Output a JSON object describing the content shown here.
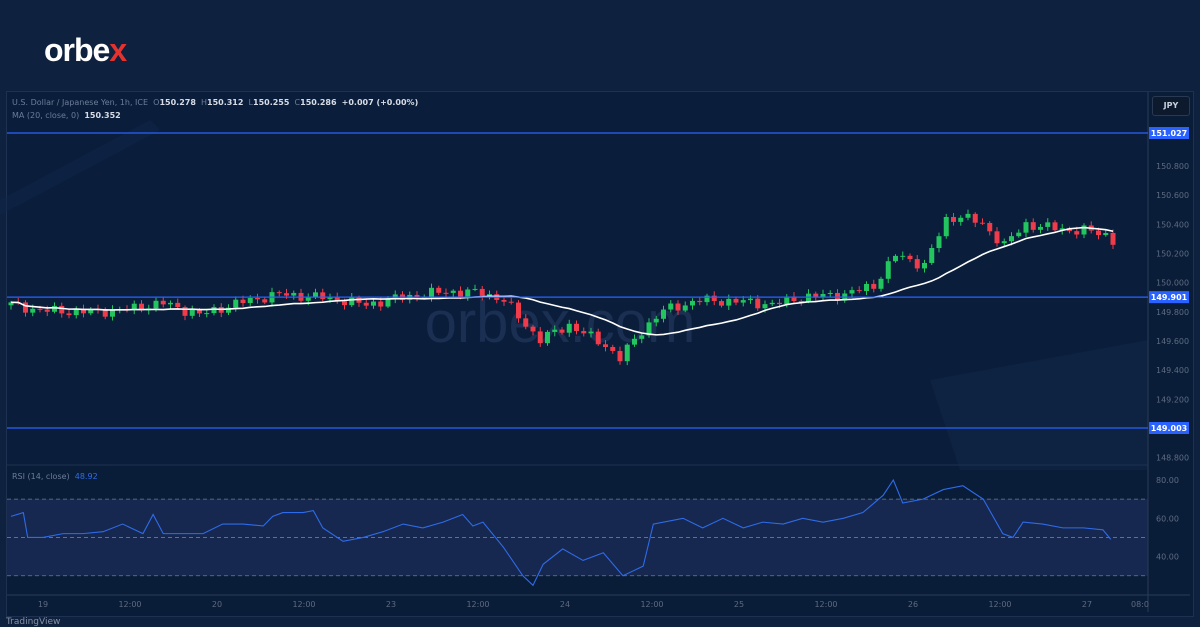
{
  "brand": {
    "logo_text": "orbex",
    "watermark": "orbex.com"
  },
  "header": {
    "symbol": "U.S. Dollar / Japanese Yen, 1h, ICE",
    "open_label": "O",
    "open": "150.278",
    "high_label": "H",
    "high": "150.312",
    "low_label": "L",
    "low": "150.255",
    "close_label": "C",
    "close": "150.286",
    "change": "+0.007 (+0.00%)",
    "ma_label": "MA (20, close, 0)",
    "ma_value": "150.352",
    "rsi_label": "RSI (14, close)",
    "rsi_value": "48.92",
    "currency_button": "JPY"
  },
  "footer": {
    "text": "TradingView"
  },
  "colors": {
    "up": "#26a69a",
    "up_bright": "#22c55e",
    "down": "#ef3b4a",
    "level": "#2962ff",
    "rsi": "#2f6be8",
    "ma": "#ffffff"
  },
  "chart_data": [
    {
      "type": "candlestick",
      "title": "U.S. Dollar / Japanese Yen, 1h",
      "ylim": [
        148.75,
        151.05
      ],
      "yticks": [
        "150.800",
        "150.600",
        "150.400",
        "150.200",
        "150.000",
        "149.800",
        "149.600",
        "149.400",
        "149.200",
        "148.800"
      ],
      "xticks": [
        "19",
        "12:00",
        "20",
        "12:00",
        "23",
        "12:00",
        "24",
        "12:00",
        "25",
        "12:00",
        "26",
        "12:00",
        "27",
        "08:0"
      ],
      "levels": [
        "151.027",
        "149.901",
        "149.003"
      ],
      "close_anchors_hour_price": [
        [
          0,
          149.85
        ],
        [
          4,
          149.81
        ],
        [
          10,
          149.8
        ],
        [
          15,
          149.81
        ],
        [
          21,
          149.86
        ],
        [
          26,
          149.78
        ],
        [
          32,
          149.87
        ],
        [
          37,
          149.92
        ],
        [
          43,
          149.9
        ],
        [
          49,
          149.85
        ],
        [
          54,
          149.9
        ],
        [
          60,
          149.94
        ],
        [
          65,
          149.93
        ],
        [
          68,
          149.88
        ],
        [
          71,
          149.71
        ],
        [
          73,
          149.61
        ],
        [
          77,
          149.71
        ],
        [
          82,
          149.57
        ],
        [
          84,
          149.48
        ],
        [
          87,
          149.67
        ],
        [
          90,
          149.81
        ],
        [
          95,
          149.88
        ],
        [
          101,
          149.87
        ],
        [
          105,
          149.85
        ],
        [
          109,
          149.9
        ],
        [
          115,
          149.92
        ],
        [
          119,
          149.98
        ],
        [
          122,
          150.19
        ],
        [
          126,
          150.12
        ],
        [
          129,
          150.43
        ],
        [
          131,
          150.46
        ],
        [
          134,
          150.4
        ],
        [
          137,
          150.26
        ],
        [
          140,
          150.4
        ],
        [
          143,
          150.38
        ],
        [
          146,
          150.36
        ],
        [
          148,
          150.36
        ],
        [
          151,
          150.33
        ],
        [
          152,
          150.29
        ]
      ],
      "ma_period": 20
    },
    {
      "type": "line",
      "title": "RSI (14, close)",
      "ylim": [
        20,
        90
      ],
      "yticks": [
        "80.00",
        "60.00",
        "40.00"
      ],
      "bands": [
        70,
        50,
        30
      ],
      "points_hour_value": [
        [
          0,
          61
        ],
        [
          1.7,
          63
        ],
        [
          2.3,
          50
        ],
        [
          4.4,
          50
        ],
        [
          7.2,
          52
        ],
        [
          9.9,
          52
        ],
        [
          12.7,
          53
        ],
        [
          15.4,
          57
        ],
        [
          18.2,
          52
        ],
        [
          19.6,
          62
        ],
        [
          21,
          52
        ],
        [
          22.3,
          52
        ],
        [
          23.7,
          52
        ],
        [
          26.5,
          52
        ],
        [
          29.2,
          57
        ],
        [
          32,
          57
        ],
        [
          34.8,
          56
        ],
        [
          36.1,
          61
        ],
        [
          37.5,
          63
        ],
        [
          40.3,
          63
        ],
        [
          41.7,
          64
        ],
        [
          43,
          55
        ],
        [
          45.8,
          48
        ],
        [
          48.6,
          50
        ],
        [
          51.3,
          53
        ],
        [
          54.1,
          57
        ],
        [
          56.8,
          55
        ],
        [
          59.6,
          58
        ],
        [
          62.3,
          62
        ],
        [
          63.7,
          56
        ],
        [
          65.1,
          58
        ],
        [
          67.9,
          45
        ],
        [
          70.6,
          30
        ],
        [
          72,
          25
        ],
        [
          73.4,
          36
        ],
        [
          76.1,
          44
        ],
        [
          78.9,
          38
        ],
        [
          81.7,
          42
        ],
        [
          84.4,
          30
        ],
        [
          87.2,
          35
        ],
        [
          88.6,
          57
        ],
        [
          92.7,
          60
        ],
        [
          95.4,
          55
        ],
        [
          98.2,
          60
        ],
        [
          101,
          55
        ],
        [
          103.7,
          58
        ],
        [
          106.5,
          57
        ],
        [
          109.2,
          60
        ],
        [
          112,
          58
        ],
        [
          114.8,
          60
        ],
        [
          117.5,
          63
        ],
        [
          120.3,
          72
        ],
        [
          121.7,
          80
        ],
        [
          123,
          68
        ],
        [
          125.8,
          70
        ],
        [
          128.6,
          75
        ],
        [
          131.3,
          77
        ],
        [
          134.1,
          70
        ],
        [
          136.8,
          52
        ],
        [
          138.2,
          50
        ],
        [
          139.6,
          58
        ],
        [
          142.3,
          57
        ],
        [
          145.1,
          55
        ],
        [
          147.9,
          55
        ],
        [
          150.6,
          54
        ],
        [
          151.7,
          49
        ]
      ]
    }
  ]
}
